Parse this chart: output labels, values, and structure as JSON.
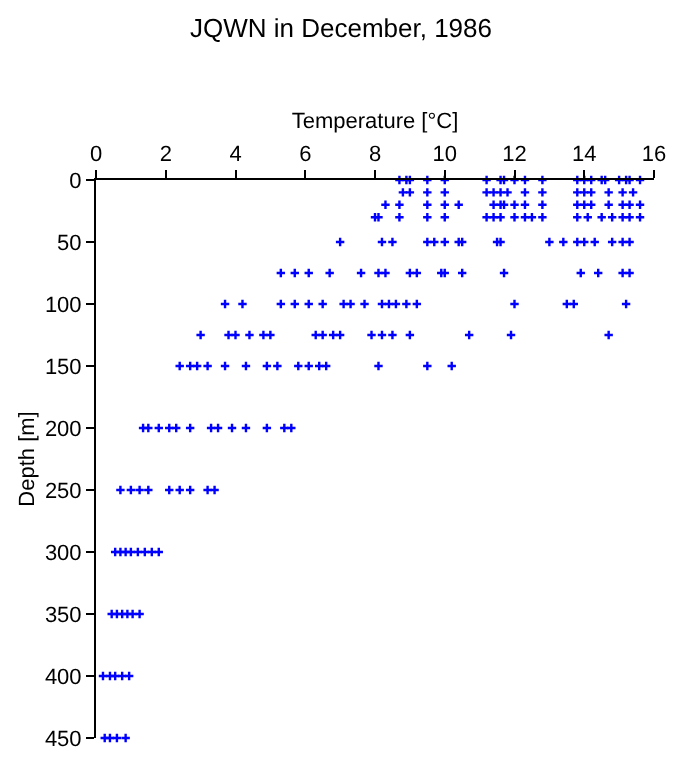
{
  "chart_data": {
    "type": "scatter",
    "title": "JQWN in December, 1986",
    "xlabel": "Temperature [°C]",
    "ylabel": "Depth [m]",
    "xlim": [
      0,
      16
    ],
    "xticks": [
      0,
      2,
      4,
      6,
      8,
      10,
      12,
      14,
      16
    ],
    "ylim": [
      450,
      0
    ],
    "yticks": [
      0,
      50,
      100,
      150,
      200,
      250,
      300,
      350,
      400,
      450
    ],
    "marker": "cross",
    "series": [
      {
        "color": "#0000ff",
        "x": [
          8.7,
          8.9,
          9.0,
          9.5,
          10.0,
          11.2,
          11.6,
          11.7,
          12.0,
          12.3,
          12.8,
          13.8,
          14.0,
          14.2,
          14.5,
          14.6,
          15.0,
          15.2,
          15.3,
          15.6,
          8.8,
          9.0,
          9.5,
          10.0,
          11.2,
          11.4,
          11.6,
          11.8,
          12.3,
          12.8,
          13.8,
          14.0,
          14.2,
          14.7,
          15.1,
          15.4,
          8.3,
          8.7,
          9.5,
          10.0,
          10.4,
          11.4,
          11.6,
          11.7,
          12.0,
          12.3,
          12.8,
          13.8,
          14.0,
          14.2,
          14.7,
          15.1,
          15.3,
          15.6,
          8.0,
          8.1,
          8.7,
          9.5,
          10.0,
          11.2,
          11.4,
          11.6,
          12.0,
          12.3,
          12.5,
          12.8,
          13.8,
          14.1,
          14.5,
          14.8,
          15.1,
          15.3,
          15.6,
          7.0,
          8.2,
          8.5,
          9.5,
          9.7,
          10.0,
          10.4,
          10.5,
          11.5,
          11.6,
          13.0,
          13.4,
          13.8,
          14.0,
          14.3,
          14.8,
          15.1,
          15.3,
          5.3,
          5.7,
          6.1,
          6.7,
          7.6,
          8.1,
          8.3,
          9.0,
          9.2,
          9.9,
          10.0,
          10.5,
          11.7,
          13.9,
          14.4,
          15.1,
          15.3,
          3.7,
          4.2,
          5.3,
          5.7,
          6.1,
          6.5,
          7.1,
          7.3,
          7.7,
          8.2,
          8.4,
          8.6,
          8.9,
          9.2,
          12.0,
          13.5,
          13.7,
          15.2,
          3.0,
          3.8,
          4.0,
          4.4,
          4.8,
          5.0,
          6.3,
          6.5,
          6.8,
          7.0,
          7.9,
          8.2,
          8.5,
          9.0,
          10.7,
          11.9,
          14.7,
          2.4,
          2.7,
          2.9,
          3.2,
          3.7,
          4.3,
          4.9,
          5.2,
          5.8,
          6.1,
          6.4,
          6.6,
          8.1,
          9.5,
          10.2,
          1.35,
          1.5,
          1.8,
          2.1,
          2.3,
          2.7,
          3.3,
          3.5,
          3.9,
          4.3,
          4.9,
          5.4,
          5.6,
          0.7,
          1.0,
          1.25,
          1.5,
          2.1,
          2.4,
          2.7,
          3.2,
          3.4,
          0.55,
          0.7,
          0.85,
          1.0,
          1.2,
          1.4,
          1.6,
          1.8,
          0.45,
          0.6,
          0.75,
          0.9,
          1.05,
          1.25,
          0.2,
          0.4,
          0.55,
          0.75,
          0.95,
          0.25,
          0.4,
          0.6,
          0.85
        ],
        "values": [
          0,
          0,
          0,
          0,
          0,
          0,
          0,
          0,
          0,
          0,
          0,
          0,
          0,
          0,
          0,
          0,
          0,
          0,
          0,
          0,
          10,
          10,
          10,
          10,
          10,
          10,
          10,
          10,
          10,
          10,
          10,
          10,
          10,
          10,
          10,
          10,
          20,
          20,
          20,
          20,
          20,
          20,
          20,
          20,
          20,
          20,
          20,
          20,
          20,
          20,
          20,
          20,
          20,
          20,
          30,
          30,
          30,
          30,
          30,
          30,
          30,
          30,
          30,
          30,
          30,
          30,
          30,
          30,
          30,
          30,
          30,
          30,
          30,
          50,
          50,
          50,
          50,
          50,
          50,
          50,
          50,
          50,
          50,
          50,
          50,
          50,
          50,
          50,
          50,
          50,
          50,
          75,
          75,
          75,
          75,
          75,
          75,
          75,
          75,
          75,
          75,
          75,
          75,
          75,
          75,
          75,
          75,
          75,
          100,
          100,
          100,
          100,
          100,
          100,
          100,
          100,
          100,
          100,
          100,
          100,
          100,
          100,
          100,
          100,
          100,
          100,
          125,
          125,
          125,
          125,
          125,
          125,
          125,
          125,
          125,
          125,
          125,
          125,
          125,
          125,
          125,
          125,
          125,
          150,
          150,
          150,
          150,
          150,
          150,
          150,
          150,
          150,
          150,
          150,
          150,
          150,
          150,
          150,
          200,
          200,
          200,
          200,
          200,
          200,
          200,
          200,
          200,
          200,
          200,
          200,
          200,
          250,
          250,
          250,
          250,
          250,
          250,
          250,
          250,
          250,
          300,
          300,
          300,
          300,
          300,
          300,
          300,
          300,
          350,
          350,
          350,
          350,
          350,
          350,
          400,
          400,
          400,
          400,
          400,
          450,
          450,
          450,
          450
        ]
      }
    ]
  }
}
